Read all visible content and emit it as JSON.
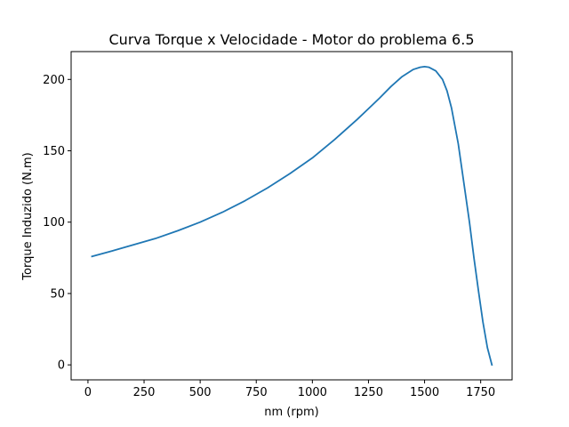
{
  "chart_data": {
    "type": "line",
    "title": "Curva Torque x Velocidade - Motor do problema 6.5",
    "xlabel": "nm (rpm)",
    "ylabel": "Torque Induzido (N.m)",
    "xlim": [
      -75,
      1890
    ],
    "ylim": [
      -10.5,
      219.5
    ],
    "xticks": [
      0,
      250,
      500,
      750,
      1000,
      1250,
      1500,
      1750
    ],
    "yticks": [
      0,
      50,
      100,
      150,
      200
    ],
    "grid": false,
    "line_color": "#1f77b4",
    "series": [
      {
        "x": [
          18,
          100,
          200,
          300,
          400,
          500,
          600,
          700,
          800,
          900,
          1000,
          1100,
          1200,
          1300,
          1350,
          1400,
          1450,
          1480,
          1500,
          1520,
          1550,
          1580,
          1600,
          1620,
          1650,
          1680,
          1700,
          1720,
          1740,
          1760,
          1780,
          1800
        ],
        "y": [
          76,
          79.5,
          84,
          88.5,
          94,
          100,
          107,
          115,
          124,
          134,
          145,
          158,
          172,
          187,
          195,
          202,
          207,
          208.5,
          209,
          208.5,
          206,
          200,
          192,
          180,
          155,
          122,
          100,
          75,
          52,
          30,
          12,
          0
        ]
      }
    ]
  }
}
